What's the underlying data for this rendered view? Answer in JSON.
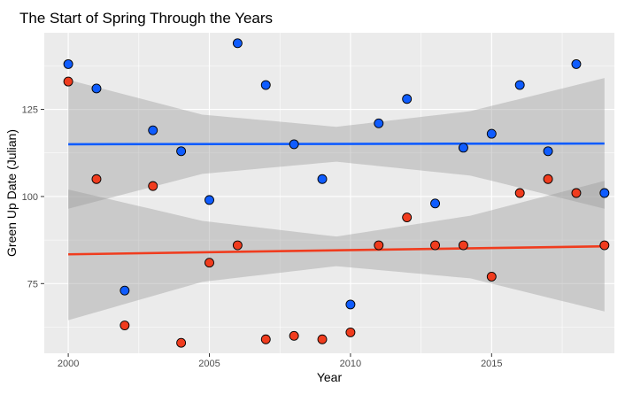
{
  "chart_data": {
    "type": "scatter",
    "title": "The Start of Spring Through the Years",
    "xlabel": "Year",
    "ylabel": "Green Up Date (Julian)",
    "xlim": [
      1999.15,
      2019.35
    ],
    "ylim": [
      55.0,
      147.0
    ],
    "x_ticks": [
      2000,
      2005,
      2010,
      2015
    ],
    "x_tick_labels": [
      "2000",
      "2005",
      "2010",
      "2015"
    ],
    "y_ticks": [
      75,
      100,
      125
    ],
    "y_tick_labels": [
      "75",
      "100",
      "125"
    ],
    "grid": true,
    "legend": "none",
    "series": [
      {
        "color": "#0f5cff",
        "x": [
          2000,
          2001,
          2002,
          2003,
          2004,
          2005,
          2006,
          2007,
          2008,
          2009,
          2010,
          2011,
          2012,
          2013,
          2014,
          2015,
          2016,
          2017,
          2018,
          2019
        ],
        "y": [
          138,
          131,
          73,
          119,
          113,
          99,
          144,
          132,
          115,
          105,
          69,
          121,
          128,
          98,
          114,
          118,
          132,
          113,
          138,
          101
        ],
        "trend": {
          "x": [
            2000,
            2019
          ],
          "y": [
            115.0,
            115.2
          ]
        },
        "ci": {
          "x": [
            2000,
            2004.75,
            2009.5,
            2014.25,
            2019
          ],
          "lower": [
            96.5,
            106.5,
            110.0,
            106.0,
            96.5
          ],
          "upper": [
            133.5,
            123.5,
            120.0,
            124.5,
            134.0
          ]
        }
      },
      {
        "color": "#f03c1e",
        "x": [
          2000,
          2001,
          2002,
          2003,
          2004,
          2005,
          2006,
          2007,
          2008,
          2009,
          2010,
          2011,
          2012,
          2013,
          2014,
          2015,
          2016,
          2017,
          2018,
          2019
        ],
        "y": [
          133,
          105,
          63,
          103,
          58,
          81,
          86,
          59,
          60,
          59,
          61,
          86,
          94,
          86,
          86,
          77,
          101,
          105,
          101,
          86
        ],
        "trend": {
          "x": [
            2000,
            2019
          ],
          "y": [
            83.4,
            85.7
          ]
        },
        "ci": {
          "x": [
            2000,
            2004.75,
            2009.5,
            2014.25,
            2019
          ],
          "lower": [
            64.5,
            75.5,
            80.0,
            76.5,
            67.0
          ],
          "upper": [
            102.0,
            93.0,
            88.5,
            94.5,
            104.5
          ]
        }
      }
    ]
  }
}
